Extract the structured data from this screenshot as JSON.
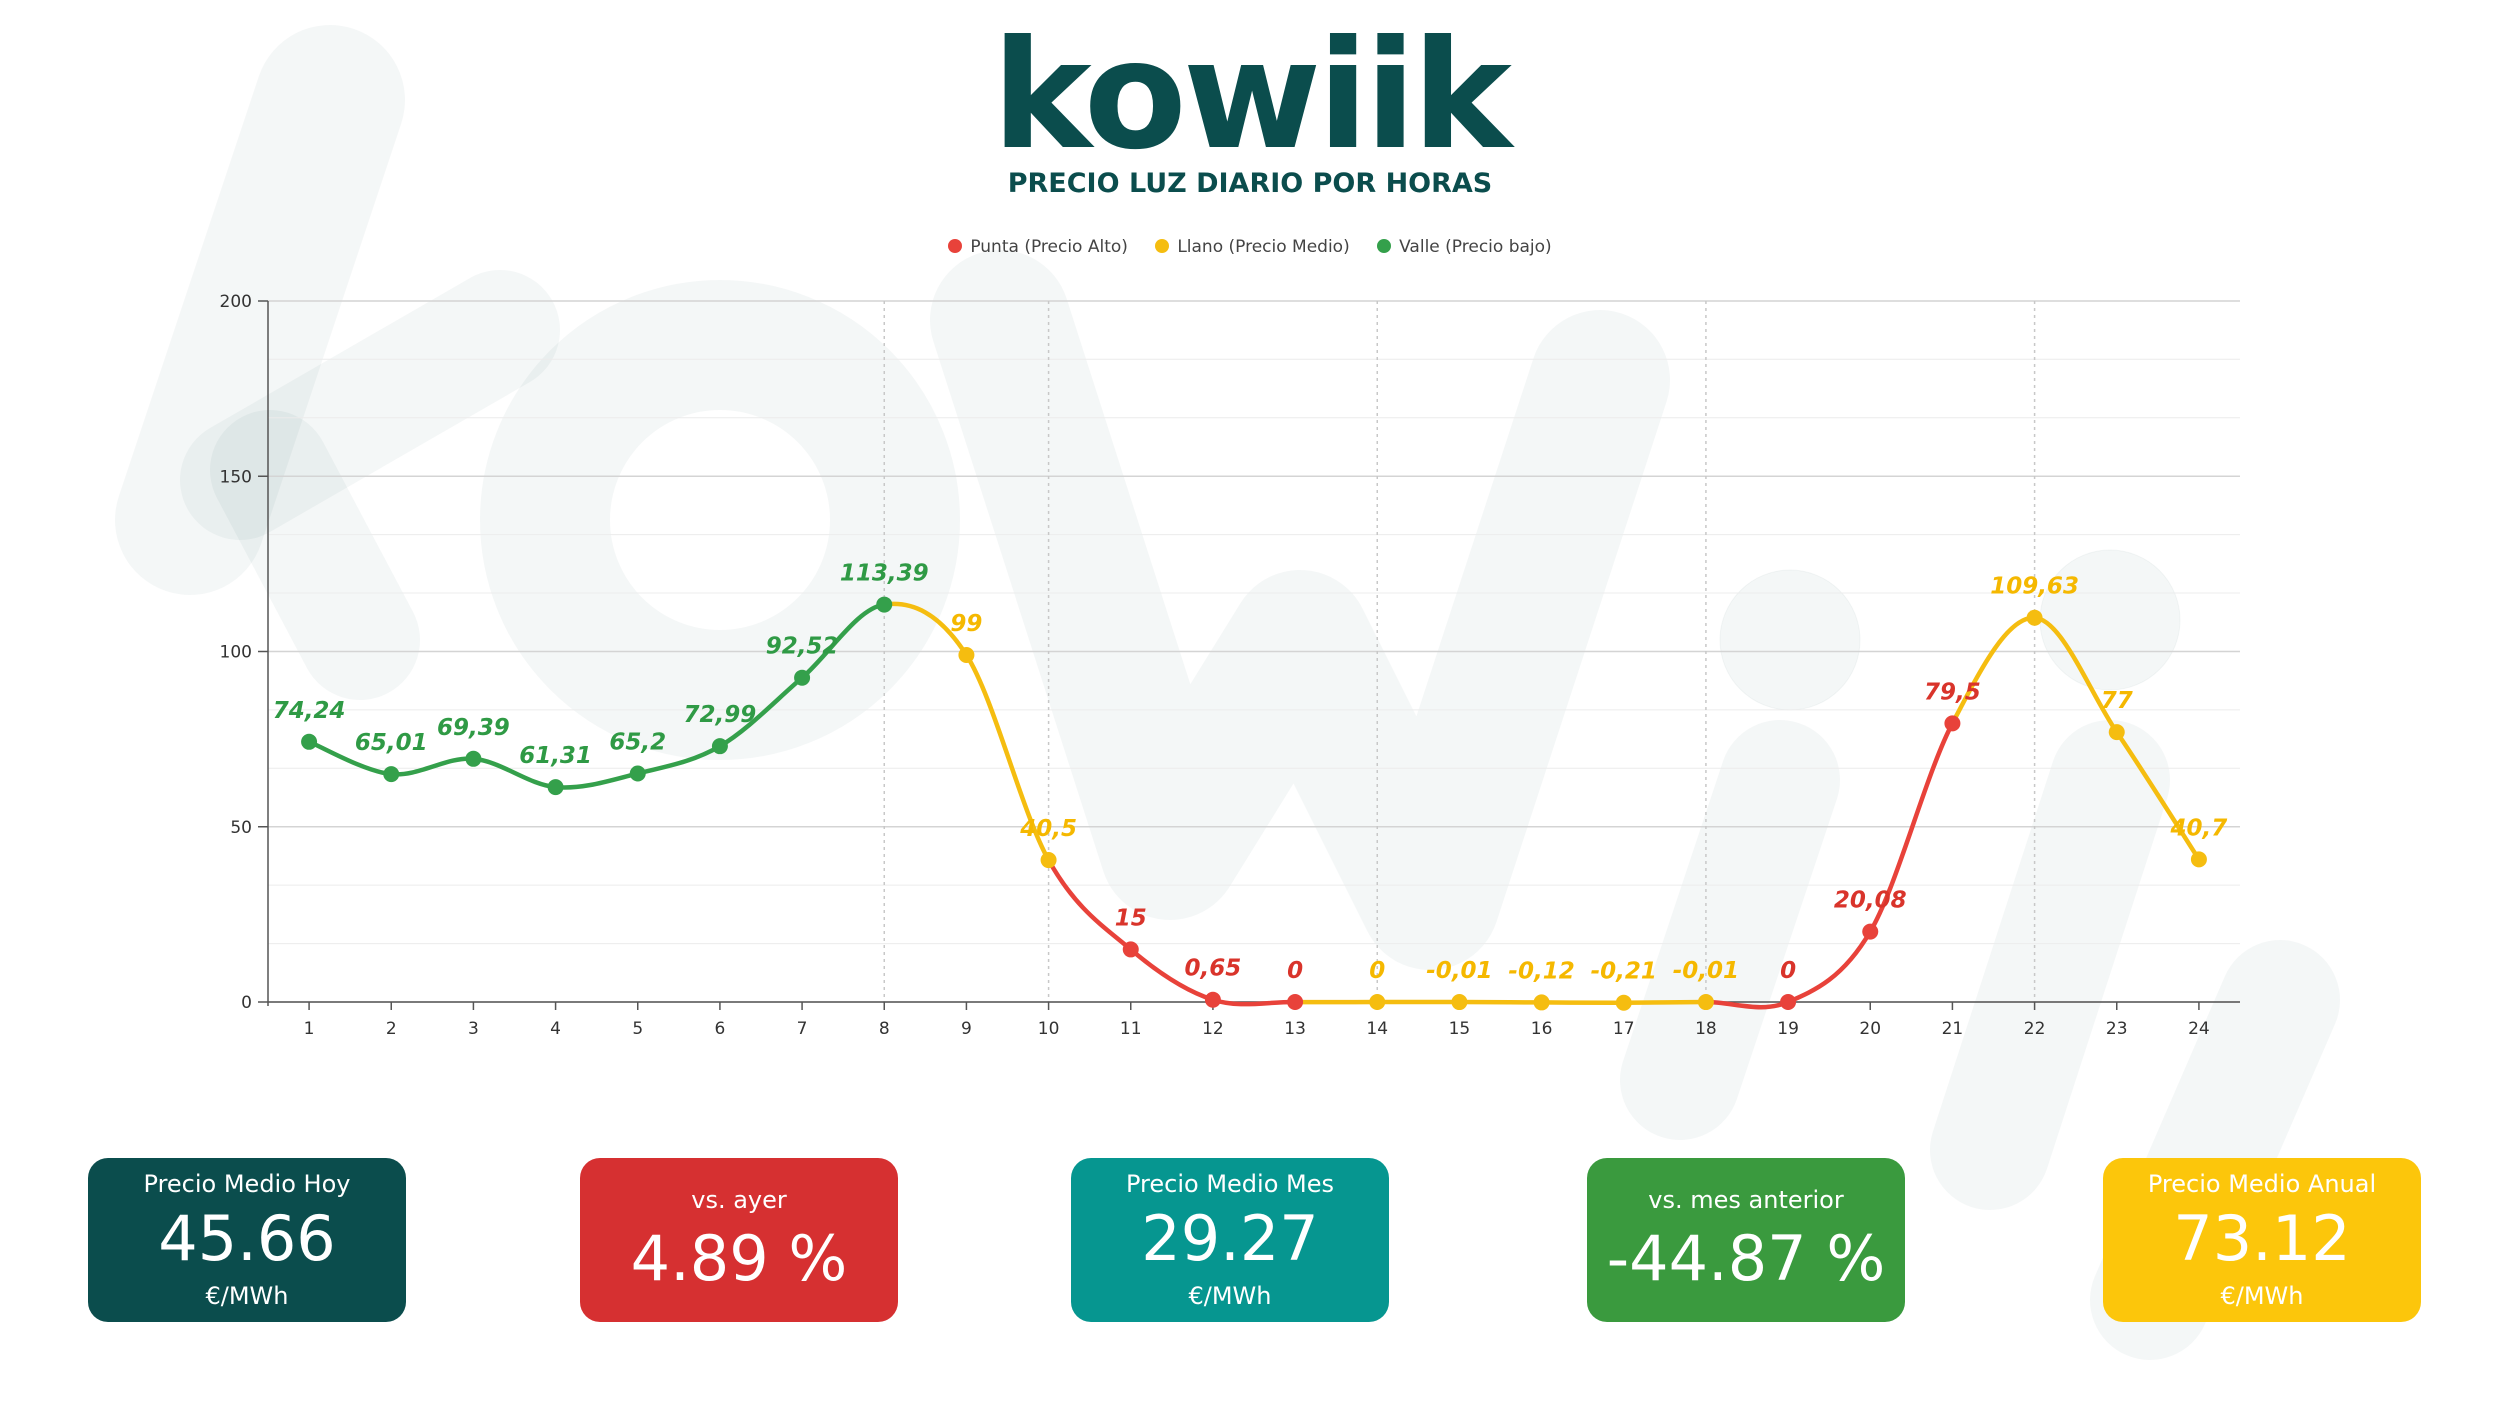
{
  "brand": {
    "logo_text": "kowiik",
    "primary_color": "#0b4d4d"
  },
  "title": "PRECIO LUZ DIARIO POR HORAS",
  "legend": [
    {
      "label": "Punta (Precio Alto)",
      "color": "#e8423a"
    },
    {
      "label": "Llano (Precio Medio)",
      "color": "#f5bd10"
    },
    {
      "label": "Valle (Precio bajo)",
      "color": "#34a04b"
    }
  ],
  "chart_data": {
    "type": "line",
    "title": "PRECIO LUZ DIARIO POR HORAS",
    "x": [
      1,
      2,
      3,
      4,
      5,
      6,
      7,
      8,
      9,
      10,
      11,
      12,
      13,
      14,
      15,
      16,
      17,
      18,
      19,
      20,
      21,
      22,
      23,
      24
    ],
    "values": [
      74.24,
      65.01,
      69.39,
      61.31,
      65.2,
      72.99,
      92.52,
      113.39,
      99,
      40.5,
      15,
      0.65,
      0,
      0,
      -0.01,
      -0.12,
      -0.21,
      -0.01,
      0,
      20.08,
      79.5,
      109.63,
      77,
      40.7
    ],
    "value_labels": [
      "74,24",
      "65,01",
      "69,39",
      "61,31",
      "65,2",
      "72,99",
      "92,52",
      "113,39",
      "99",
      "40,5",
      "15",
      "0,65",
      "0",
      "0",
      "-0,01",
      "-0,12",
      "-0,21",
      "-0,01",
      "0",
      "20,08",
      "79,5",
      "109,63",
      "77",
      "40,7"
    ],
    "point_series": [
      "valle",
      "valle",
      "valle",
      "valle",
      "valle",
      "valle",
      "valle",
      "valle",
      "llano",
      "llano",
      "punta",
      "punta",
      "punta",
      "llano",
      "llano",
      "llano",
      "llano",
      "llano",
      "punta",
      "punta",
      "punta",
      "llano",
      "llano",
      "llano"
    ],
    "series": [
      {
        "name": "Punta (Precio Alto)",
        "key": "punta",
        "color": "#e8423a"
      },
      {
        "name": "Llano (Precio Medio)",
        "key": "llano",
        "color": "#f5bd10"
      },
      {
        "name": "Valle (Precio bajo)",
        "key": "valle",
        "color": "#34a04b"
      }
    ],
    "ylim": [
      0,
      200
    ],
    "y_ticks": [
      0,
      50,
      100,
      150,
      200
    ],
    "grid": true,
    "legend_position": "top-center"
  },
  "cards": [
    {
      "label": "Precio Medio Hoy",
      "value": "45.66",
      "unit": "€/MWh",
      "color": "#0b4d4d"
    },
    {
      "label": "vs. ayer",
      "value": "4.89 %",
      "color": "#d63031"
    },
    {
      "label": "Precio Medio Mes",
      "value": "29.27",
      "unit": "€/MWh",
      "color": "#069690"
    },
    {
      "label": "vs. mes anterior",
      "value": "-44.87 %",
      "color": "#3a9a3e"
    },
    {
      "label": "Precio Medio Anual",
      "value": "73.12",
      "unit": "€/MWh",
      "color": "#fcc60b"
    }
  ]
}
